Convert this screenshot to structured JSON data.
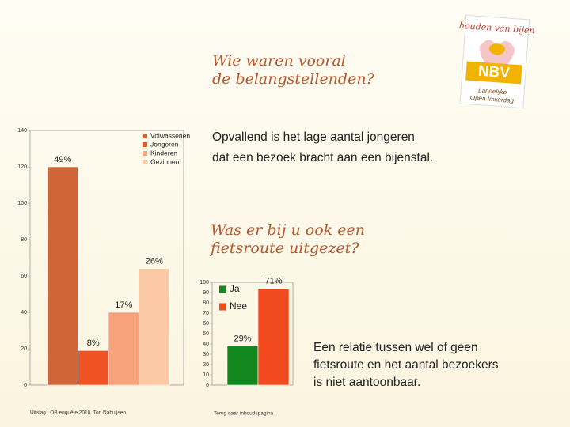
{
  "slide": {
    "title_lines": [
      "Wie waren vooral",
      "de belangstellenden?"
    ],
    "text1_lines": [
      "Opvallend is het lage aantal jongeren",
      "dat een bezoek bracht aan een bijenstal."
    ],
    "question_lines": [
      "Was er bij u ook een",
      "fietsroute uitgezet?"
    ],
    "conclusion_lines": [
      "Een relatie tussen wel of geen",
      "fietsroute en het aantal bezoekers",
      "is niet aantoonbaar."
    ]
  },
  "logo": {
    "top": "houden van bijen",
    "name": "NBV",
    "bottom_lines": [
      "Landelijke",
      "Open Imkerdag"
    ]
  },
  "footer": {
    "source": "Uitslag LOB enquête 2010, Ton Nahuijsen",
    "link": "Terug naar inhoudspagina"
  },
  "chart_data": [
    {
      "type": "bar",
      "categories": [
        "Volwassenen",
        "Jongeren",
        "Kinderen",
        "Gezinnen"
      ],
      "values": [
        120,
        19,
        40,
        64
      ],
      "annotations": [
        "49%",
        "8%",
        "17%",
        "26%"
      ],
      "colors": [
        "#cf6538",
        "#f05323",
        "#f8a27c",
        "#fcc9a7"
      ],
      "ylim": [
        0,
        140
      ],
      "yticks": [
        0,
        20,
        40,
        60,
        80,
        100,
        120,
        140
      ]
    },
    {
      "type": "bar",
      "categories": [
        "Ja",
        "Nee"
      ],
      "values": [
        38,
        94
      ],
      "annotations": [
        "29%",
        "71%"
      ],
      "colors": [
        "#12891e",
        "#f04a1e"
      ],
      "ylim": [
        0,
        100
      ],
      "yticks": [
        0,
        10,
        20,
        30,
        40,
        50,
        60,
        70,
        80,
        90,
        100
      ]
    }
  ]
}
